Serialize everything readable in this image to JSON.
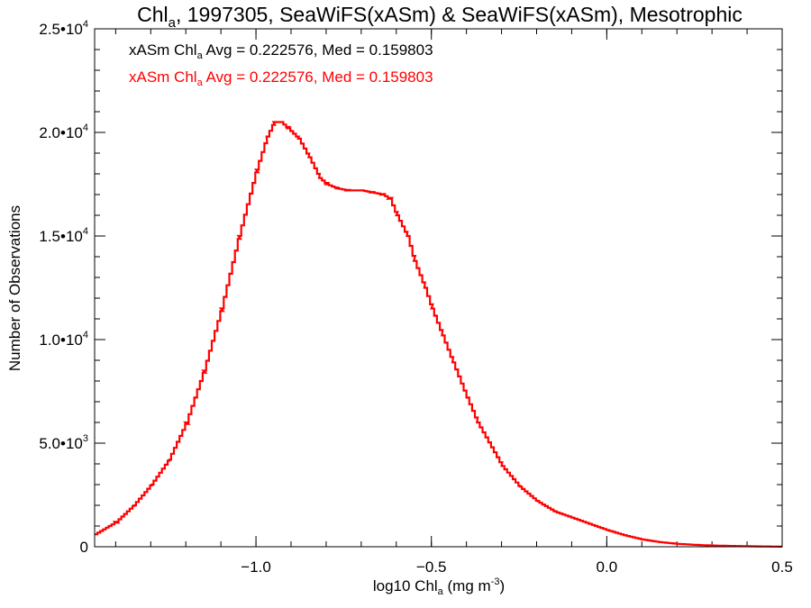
{
  "chart_data": {
    "type": "line",
    "title": {
      "part1": "Chl",
      "sub": "a",
      "part2": ", 1997305, SeaWiFS(xASm) & SeaWiFS(xASm), Mesotrophic"
    },
    "xlabel": {
      "part1": "log10 Chl",
      "sub": "a",
      "part2": " (mg m",
      "sup": "-3",
      "part3": ")"
    },
    "ylabel": "Number of Observations",
    "xlim": [
      -1.46,
      0.5
    ],
    "ylim": [
      0,
      25000
    ],
    "x_ticks": [
      {
        "value": -1.0,
        "label": "−1.0"
      },
      {
        "value": -0.5,
        "label": "−0.5"
      },
      {
        "value": 0.0,
        "label": "0.0"
      },
      {
        "value": 0.5,
        "label": "0.5"
      }
    ],
    "y_ticks": [
      {
        "value": 0,
        "mant": "0",
        "exp": ""
      },
      {
        "value": 5000,
        "mant": "5.0•10",
        "exp": "3"
      },
      {
        "value": 10000,
        "mant": "1.0•10",
        "exp": "4"
      },
      {
        "value": 15000,
        "mant": "1.5•10",
        "exp": "4"
      },
      {
        "value": 20000,
        "mant": "2.0•10",
        "exp": "4"
      },
      {
        "value": 25000,
        "mant": "2.5•10",
        "exp": "4"
      }
    ],
    "x_minor_step": 0.1,
    "y_minor_step": 1000,
    "annotations": [
      {
        "part1": "xASm Chl",
        "sub": "a",
        "part2": " Avg = 0.222576, Med = 0.159803",
        "color": "#000000"
      },
      {
        "part1": "xASm Chl",
        "sub": "a",
        "part2": " Avg = 0.222576, Med = 0.159803",
        "color": "#ff0000"
      }
    ],
    "series": [
      {
        "color": "#ff0000",
        "style": "step",
        "points": [
          [
            -1.46,
            600
          ],
          [
            -1.4,
            1200
          ],
          [
            -1.35,
            2000
          ],
          [
            -1.3,
            3000
          ],
          [
            -1.25,
            4200
          ],
          [
            -1.2,
            6000
          ],
          [
            -1.15,
            8500
          ],
          [
            -1.1,
            11500
          ],
          [
            -1.05,
            15000
          ],
          [
            -1.0,
            18200
          ],
          [
            -0.97,
            19800
          ],
          [
            -0.95,
            20500
          ],
          [
            -0.93,
            20500
          ],
          [
            -0.91,
            20200
          ],
          [
            -0.88,
            19700
          ],
          [
            -0.85,
            18800
          ],
          [
            -0.82,
            17800
          ],
          [
            -0.8,
            17500
          ],
          [
            -0.77,
            17300
          ],
          [
            -0.74,
            17200
          ],
          [
            -0.7,
            17200
          ],
          [
            -0.67,
            17100
          ],
          [
            -0.64,
            17000
          ],
          [
            -0.62,
            16800
          ],
          [
            -0.6,
            16000
          ],
          [
            -0.57,
            15000
          ],
          [
            -0.55,
            13800
          ],
          [
            -0.52,
            12500
          ],
          [
            -0.5,
            11500
          ],
          [
            -0.47,
            10200
          ],
          [
            -0.44,
            8900
          ],
          [
            -0.4,
            7200
          ],
          [
            -0.37,
            6000
          ],
          [
            -0.33,
            4800
          ],
          [
            -0.3,
            3900
          ],
          [
            -0.25,
            2900
          ],
          [
            -0.2,
            2200
          ],
          [
            -0.15,
            1700
          ],
          [
            -0.1,
            1400
          ],
          [
            -0.05,
            1100
          ],
          [
            0.0,
            800
          ],
          [
            0.05,
            550
          ],
          [
            0.1,
            350
          ],
          [
            0.15,
            220
          ],
          [
            0.2,
            140
          ],
          [
            0.25,
            90
          ],
          [
            0.3,
            60
          ],
          [
            0.35,
            40
          ],
          [
            0.4,
            25
          ],
          [
            0.45,
            12
          ],
          [
            0.5,
            5
          ]
        ]
      }
    ]
  }
}
